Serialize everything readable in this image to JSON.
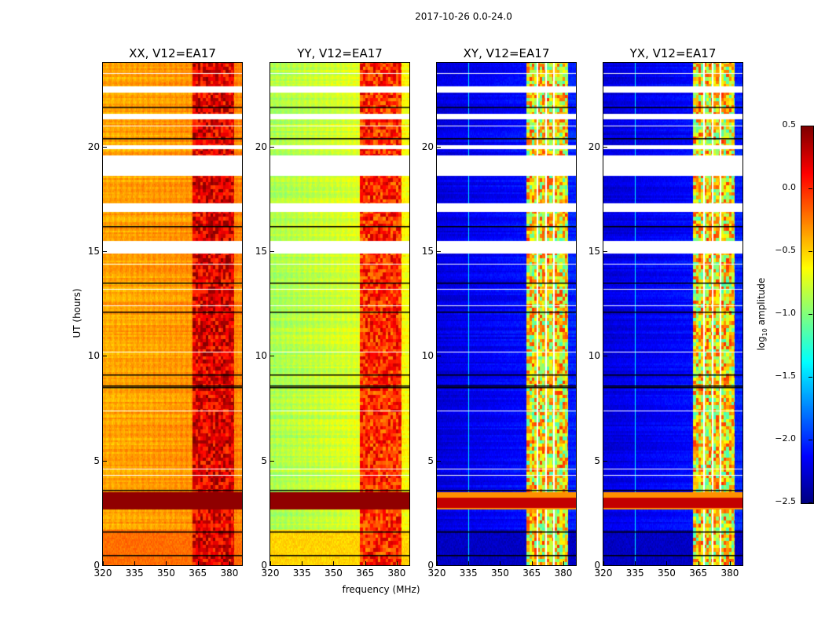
{
  "chart_data": {
    "type": "heatmap",
    "title": "2017-10-26 0.0-24.0",
    "xlabel": "frequency (MHz)",
    "ylabel": "UT (hours)",
    "xlim": [
      320,
      386
    ],
    "ylim": [
      0,
      24
    ],
    "xticks": [
      "320",
      "335",
      "350",
      "365",
      "380"
    ],
    "yticks": [
      "0",
      "5",
      "10",
      "15",
      "20"
    ],
    "colorbar": {
      "label": "log10 amplitude",
      "label_main": "log",
      "label_sub": "10",
      "label_rest": " amplitude",
      "range": [
        -2.5,
        0.5
      ],
      "ticks": [
        "0.5",
        "0.0",
        "−0.5",
        "−1.0",
        "−1.5",
        "−2.0",
        "−2.5"
      ],
      "tick_values": [
        0.5,
        0.0,
        -0.5,
        -1.0,
        -1.5,
        -2.0,
        -2.5
      ],
      "colormap": "jet"
    },
    "panels": [
      {
        "title": "XX, V12=EA17",
        "base": -0.45,
        "base_right": -0.35,
        "band": 0.2,
        "low_hours_level": -0.2
      },
      {
        "title": "YY, V12=EA17",
        "base": -0.95,
        "base_right": -0.7,
        "band": 0.0,
        "low_hours_level": -0.5
      },
      {
        "title": "XY, V12=EA17",
        "base": -2.3,
        "base_right": -2.1,
        "band": -0.6,
        "low_hours_level": -2.3
      },
      {
        "title": "YX, V12=EA17",
        "base": -2.3,
        "base_right": -2.1,
        "band": -0.6,
        "low_hours_level": -2.3
      }
    ],
    "rfi_band_mhz": [
      362.5,
      382
    ],
    "flagged_gaps_hours": [
      [
        22.6,
        22.9
      ],
      [
        18.6,
        19.6
      ],
      [
        16.9,
        17.3
      ],
      [
        14.9,
        15.5
      ],
      [
        19.9,
        20.1
      ],
      [
        21.3,
        21.6
      ]
    ],
    "black_line_hours": [
      0.5,
      8.5,
      8.6,
      12.1,
      16.2,
      20.4,
      21.9,
      1.6,
      3.6,
      13.5,
      9.1
    ],
    "strong_band_hours": [
      2.7,
      3.5
    ]
  }
}
